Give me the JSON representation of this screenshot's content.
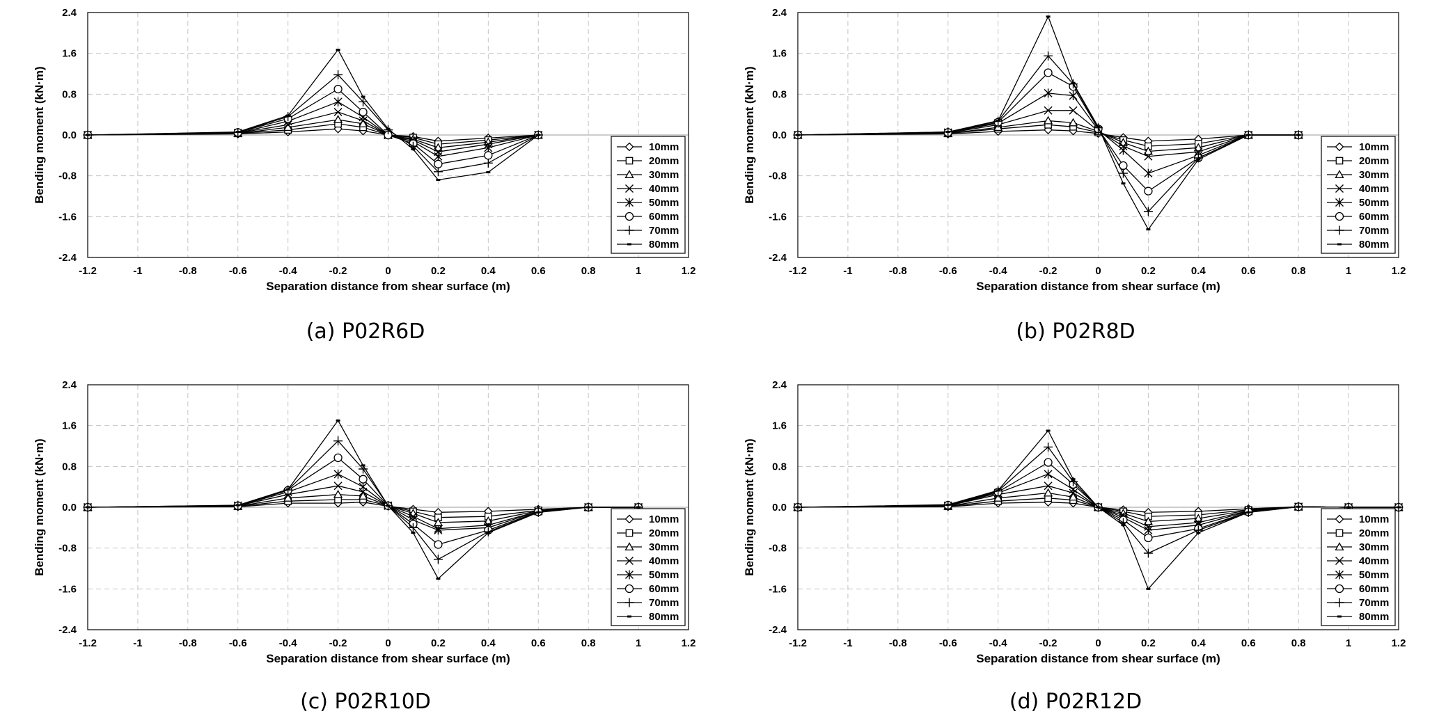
{
  "chart_data": [
    {
      "type": "line",
      "caption": "(a) P02R6D",
      "xlabel": "Separation distance from shear surface (m)",
      "ylabel": "Bending moment (kN·m)",
      "xlim": [
        -1.2,
        1.2
      ],
      "ylim": [
        -2.4,
        2.4
      ],
      "xticks": [
        -1.2,
        -1,
        -0.8,
        -0.6,
        -0.4,
        -0.2,
        0,
        0.2,
        0.4,
        0.6,
        0.8,
        1,
        1.2
      ],
      "xtick_labels": [
        "-1.2",
        "-1",
        "-0.8",
        "-0.6",
        "-0.4",
        "-0.2",
        "0",
        "0.2",
        "0.4",
        "0.6",
        "0.8",
        "1",
        "1.2"
      ],
      "yticks": [
        -2.4,
        -1.6,
        -0.8,
        0,
        0.8,
        1.6,
        2.4
      ],
      "ytick_labels": [
        "-2.4",
        "-1.6",
        "-0.8",
        "0.0",
        "0.8",
        "1.6",
        "2.4"
      ],
      "grid": true,
      "legend_position": "bottom-right",
      "x": [
        -1.2,
        -0.6,
        -0.4,
        -0.2,
        -0.1,
        0,
        0.1,
        0.2,
        0.4,
        0.6
      ],
      "series": [
        {
          "name": "10mm",
          "marker": "diamond",
          "values": [
            0,
            0.02,
            0.06,
            0.12,
            0.08,
            0.0,
            -0.03,
            -0.12,
            -0.06,
            0
          ]
        },
        {
          "name": "20mm",
          "marker": "square",
          "values": [
            0,
            0.03,
            0.1,
            0.22,
            0.15,
            0.0,
            -0.05,
            -0.18,
            -0.1,
            0
          ]
        },
        {
          "name": "30mm",
          "marker": "triangle",
          "values": [
            0,
            0.03,
            0.15,
            0.3,
            0.22,
            0.0,
            -0.08,
            -0.25,
            -0.14,
            0
          ]
        },
        {
          "name": "40mm",
          "marker": "x",
          "values": [
            0,
            0.04,
            0.2,
            0.45,
            0.28,
            0.0,
            -0.1,
            -0.33,
            -0.18,
            0
          ]
        },
        {
          "name": "50mm",
          "marker": "asterisk",
          "values": [
            0,
            0.04,
            0.27,
            0.65,
            0.35,
            0.0,
            -0.13,
            -0.42,
            -0.25,
            0
          ]
        },
        {
          "name": "60mm",
          "marker": "circle",
          "values": [
            0,
            0.05,
            0.32,
            0.9,
            0.45,
            0.0,
            -0.17,
            -0.57,
            -0.4,
            0
          ]
        },
        {
          "name": "70mm",
          "marker": "plus",
          "values": [
            0,
            0.05,
            0.36,
            1.18,
            0.65,
            0.1,
            -0.22,
            -0.72,
            -0.55,
            0
          ]
        },
        {
          "name": "80mm",
          "marker": "dash",
          "values": [
            0,
            0.06,
            0.38,
            1.67,
            0.75,
            0.12,
            -0.28,
            -0.88,
            -0.73,
            0
          ]
        }
      ]
    },
    {
      "type": "line",
      "caption": "(b) P02R8D",
      "xlabel": "Separation distance from shear surface (m)",
      "ylabel": "Bending moment (kN·m)",
      "xlim": [
        -1.2,
        1.2
      ],
      "ylim": [
        -2.4,
        2.4
      ],
      "xticks": [
        -1.2,
        -1,
        -0.8,
        -0.6,
        -0.4,
        -0.2,
        0,
        0.2,
        0.4,
        0.6,
        0.8,
        1,
        1.2
      ],
      "xtick_labels": [
        "-1.2",
        "-1",
        "-0.8",
        "-0.6",
        "-0.4",
        "-0.2",
        "0",
        "0.2",
        "0.4",
        "0.6",
        "0.8",
        "1",
        "1.2"
      ],
      "yticks": [
        -2.4,
        -1.6,
        -0.8,
        0,
        0.8,
        1.6,
        2.4
      ],
      "ytick_labels": [
        "-2.4",
        "-1.6",
        "-0.8",
        "0.0",
        "0.8",
        "1.6",
        "2.4"
      ],
      "grid": true,
      "legend_position": "bottom-right",
      "x": [
        -1.2,
        -0.6,
        -0.4,
        -0.2,
        -0.1,
        0,
        0.1,
        0.2,
        0.4,
        0.6,
        0.8
      ],
      "series": [
        {
          "name": "10mm",
          "marker": "diamond",
          "values": [
            0,
            0.02,
            0.07,
            0.1,
            0.08,
            0.03,
            -0.05,
            -0.12,
            -0.08,
            0,
            0
          ]
        },
        {
          "name": "20mm",
          "marker": "square",
          "values": [
            0,
            0.03,
            0.12,
            0.2,
            0.16,
            0.05,
            -0.1,
            -0.22,
            -0.17,
            0,
            0
          ]
        },
        {
          "name": "30mm",
          "marker": "triangle",
          "values": [
            0,
            0.03,
            0.15,
            0.28,
            0.24,
            0.07,
            -0.15,
            -0.32,
            -0.25,
            0,
            0
          ]
        },
        {
          "name": "40mm",
          "marker": "x",
          "values": [
            0,
            0.04,
            0.2,
            0.48,
            0.48,
            0.08,
            -0.22,
            -0.42,
            -0.33,
            0,
            0
          ]
        },
        {
          "name": "50mm",
          "marker": "asterisk",
          "values": [
            0,
            0.05,
            0.23,
            0.82,
            0.77,
            0.1,
            -0.3,
            -0.75,
            -0.4,
            0,
            0
          ]
        },
        {
          "name": "60mm",
          "marker": "circle",
          "values": [
            0,
            0.05,
            0.25,
            1.22,
            0.95,
            0.12,
            -0.6,
            -1.1,
            -0.45,
            0,
            0
          ]
        },
        {
          "name": "70mm",
          "marker": "plus",
          "values": [
            0,
            0.06,
            0.27,
            1.55,
            1.0,
            0.14,
            -0.75,
            -1.5,
            -0.45,
            0,
            0
          ]
        },
        {
          "name": "80mm",
          "marker": "dash",
          "values": [
            0,
            0.06,
            0.28,
            2.32,
            1.02,
            0.16,
            -0.95,
            -1.85,
            -0.48,
            0,
            0
          ]
        }
      ]
    },
    {
      "type": "line",
      "caption": "(c) P02R10D",
      "xlabel": "Separation distance from shear surface (m)",
      "ylabel": "Bending moment (kN·m)",
      "xlim": [
        -1.2,
        1.2
      ],
      "ylim": [
        -2.4,
        2.4
      ],
      "xticks": [
        -1.2,
        -1,
        -0.8,
        -0.6,
        -0.4,
        -0.2,
        0,
        0.2,
        0.4,
        0.6,
        0.8,
        1,
        1.2
      ],
      "xtick_labels": [
        "-1.2",
        "-1",
        "-0.8",
        "-0.6",
        "-0.4",
        "-0.2",
        "0",
        "0.2",
        "0.4",
        "0.6",
        "0.8",
        "1",
        "1.2"
      ],
      "yticks": [
        -2.4,
        -1.6,
        -0.8,
        0,
        0.8,
        1.6,
        2.4
      ],
      "ytick_labels": [
        "-2.4",
        "-1.6",
        "-0.8",
        "0.0",
        "0.8",
        "1.6",
        "2.4"
      ],
      "grid": true,
      "legend_position": "bottom-right",
      "x": [
        -1.2,
        -0.6,
        -0.4,
        -0.2,
        -0.1,
        0,
        0.1,
        0.2,
        0.4,
        0.6,
        0.8,
        1
      ],
      "series": [
        {
          "name": "10mm",
          "marker": "diamond",
          "values": [
            0,
            0.01,
            0.08,
            0.08,
            0.1,
            0.02,
            -0.04,
            -0.1,
            -0.08,
            -0.04,
            0,
            0
          ]
        },
        {
          "name": "20mm",
          "marker": "square",
          "values": [
            0,
            0.02,
            0.12,
            0.15,
            0.15,
            0.03,
            -0.08,
            -0.2,
            -0.18,
            -0.06,
            0,
            0
          ]
        },
        {
          "name": "30mm",
          "marker": "triangle",
          "values": [
            0,
            0.02,
            0.18,
            0.25,
            0.22,
            0.03,
            -0.12,
            -0.3,
            -0.27,
            -0.07,
            0,
            0
          ]
        },
        {
          "name": "40mm",
          "marker": "x",
          "values": [
            0,
            0.03,
            0.25,
            0.42,
            0.3,
            0.03,
            -0.18,
            -0.42,
            -0.35,
            -0.08,
            0,
            0
          ]
        },
        {
          "name": "50mm",
          "marker": "asterisk",
          "values": [
            0,
            0.03,
            0.3,
            0.65,
            0.4,
            0.03,
            -0.25,
            -0.45,
            -0.4,
            -0.08,
            0,
            0
          ]
        },
        {
          "name": "60mm",
          "marker": "circle",
          "values": [
            0,
            0.03,
            0.33,
            0.97,
            0.55,
            0.03,
            -0.33,
            -0.73,
            -0.45,
            -0.09,
            0,
            0
          ]
        },
        {
          "name": "70mm",
          "marker": "plus",
          "values": [
            0,
            0.04,
            0.34,
            1.3,
            0.75,
            0.03,
            -0.4,
            -1.02,
            -0.48,
            -0.1,
            0,
            0
          ]
        },
        {
          "name": "80mm",
          "marker": "dash",
          "values": [
            0,
            0.04,
            0.35,
            1.7,
            0.82,
            0.03,
            -0.5,
            -1.4,
            -0.5,
            -0.1,
            0,
            0
          ]
        }
      ]
    },
    {
      "type": "line",
      "caption": "(d) P02R12D",
      "xlabel": "Separation distance from shear surface (m)",
      "ylabel": "Bending moment (kN·m)",
      "xlim": [
        -1.2,
        1.2
      ],
      "ylim": [
        -2.4,
        2.4
      ],
      "xticks": [
        -1.2,
        -1,
        -0.8,
        -0.6,
        -0.4,
        -0.2,
        0,
        0.2,
        0.4,
        0.6,
        0.8,
        1,
        1.2
      ],
      "xtick_labels": [
        "-1.2",
        "-1",
        "-0.8",
        "-0.6",
        "-0.4",
        "-0.2",
        "0",
        "0.2",
        "0.4",
        "0.6",
        "0.8",
        "1",
        "1.2"
      ],
      "yticks": [
        -2.4,
        -1.6,
        -0.8,
        0,
        0.8,
        1.6,
        2.4
      ],
      "ytick_labels": [
        "-2.4",
        "-1.6",
        "-0.8",
        "0.0",
        "0.8",
        "1.6",
        "2.4"
      ],
      "grid": true,
      "legend_position": "bottom-right",
      "x": [
        -1.2,
        -0.6,
        -0.4,
        -0.2,
        -0.1,
        0,
        0.1,
        0.2,
        0.4,
        0.6,
        0.8,
        1,
        1.2
      ],
      "series": [
        {
          "name": "10mm",
          "marker": "diamond",
          "values": [
            0,
            0.01,
            0.08,
            0.1,
            0.08,
            0,
            -0.05,
            -0.1,
            -0.08,
            -0.03,
            0.01,
            0,
            0
          ]
        },
        {
          "name": "20mm",
          "marker": "square",
          "values": [
            0,
            0.02,
            0.12,
            0.18,
            0.14,
            0,
            -0.08,
            -0.18,
            -0.15,
            -0.05,
            0.01,
            0,
            0
          ]
        },
        {
          "name": "30mm",
          "marker": "triangle",
          "values": [
            0,
            0.02,
            0.18,
            0.28,
            0.2,
            0,
            -0.12,
            -0.28,
            -0.22,
            -0.06,
            0.01,
            0,
            0
          ]
        },
        {
          "name": "40mm",
          "marker": "x",
          "values": [
            0,
            0.03,
            0.25,
            0.42,
            0.28,
            0,
            -0.16,
            -0.38,
            -0.3,
            -0.07,
            0.01,
            0,
            0
          ]
        },
        {
          "name": "50mm",
          "marker": "asterisk",
          "values": [
            0,
            0.03,
            0.28,
            0.65,
            0.35,
            0,
            -0.2,
            -0.45,
            -0.35,
            -0.08,
            0.01,
            0,
            0
          ]
        },
        {
          "name": "60mm",
          "marker": "circle",
          "values": [
            0,
            0.04,
            0.3,
            0.88,
            0.45,
            0,
            -0.25,
            -0.6,
            -0.42,
            -0.09,
            0.01,
            0,
            0
          ]
        },
        {
          "name": "70mm",
          "marker": "plus",
          "values": [
            0,
            0.04,
            0.32,
            1.18,
            0.5,
            0,
            -0.3,
            -0.9,
            -0.45,
            -0.1,
            0.01,
            0,
            0
          ]
        },
        {
          "name": "80mm",
          "marker": "dash",
          "values": [
            0,
            0.05,
            0.33,
            1.5,
            0.55,
            0,
            -0.35,
            -1.6,
            -0.5,
            -0.1,
            0.01,
            0,
            0
          ]
        }
      ]
    }
  ]
}
